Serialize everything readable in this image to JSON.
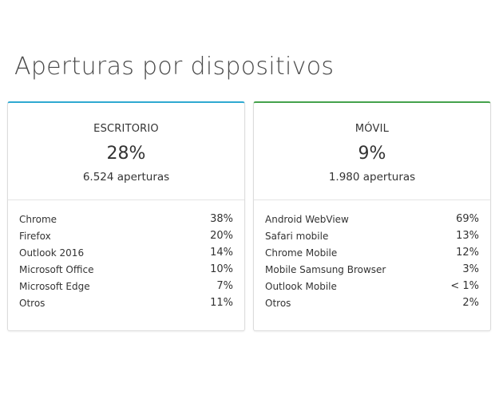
{
  "page": {
    "title": "Aperturas por dispositivos"
  },
  "cards": {
    "desktop": {
      "label": "ESCRITORIO",
      "percent": "28%",
      "opens": "6.524 aperturas",
      "accent_color": "#2fa9d1",
      "rows": [
        {
          "name": "Chrome",
          "value": "38%"
        },
        {
          "name": "Firefox",
          "value": "20%"
        },
        {
          "name": "Outlook 2016",
          "value": "14%"
        },
        {
          "name": "Microsoft Office",
          "value": "10%"
        },
        {
          "name": "Microsoft Edge",
          "value": "7%"
        },
        {
          "name": "Otros",
          "value": "11%"
        }
      ]
    },
    "mobile": {
      "label": "MÓVIL",
      "percent": "9%",
      "opens": "1.980 aperturas",
      "accent_color": "#45a24c",
      "rows": [
        {
          "name": "Android WebView",
          "value": "69%"
        },
        {
          "name": "Safari mobile",
          "value": "13%"
        },
        {
          "name": "Chrome Mobile",
          "value": "12%"
        },
        {
          "name": "Mobile Samsung Browser",
          "value": "3%"
        },
        {
          "name": "Outlook Mobile",
          "value": "< 1%"
        },
        {
          "name": "Otros",
          "value": "2%"
        }
      ]
    }
  }
}
